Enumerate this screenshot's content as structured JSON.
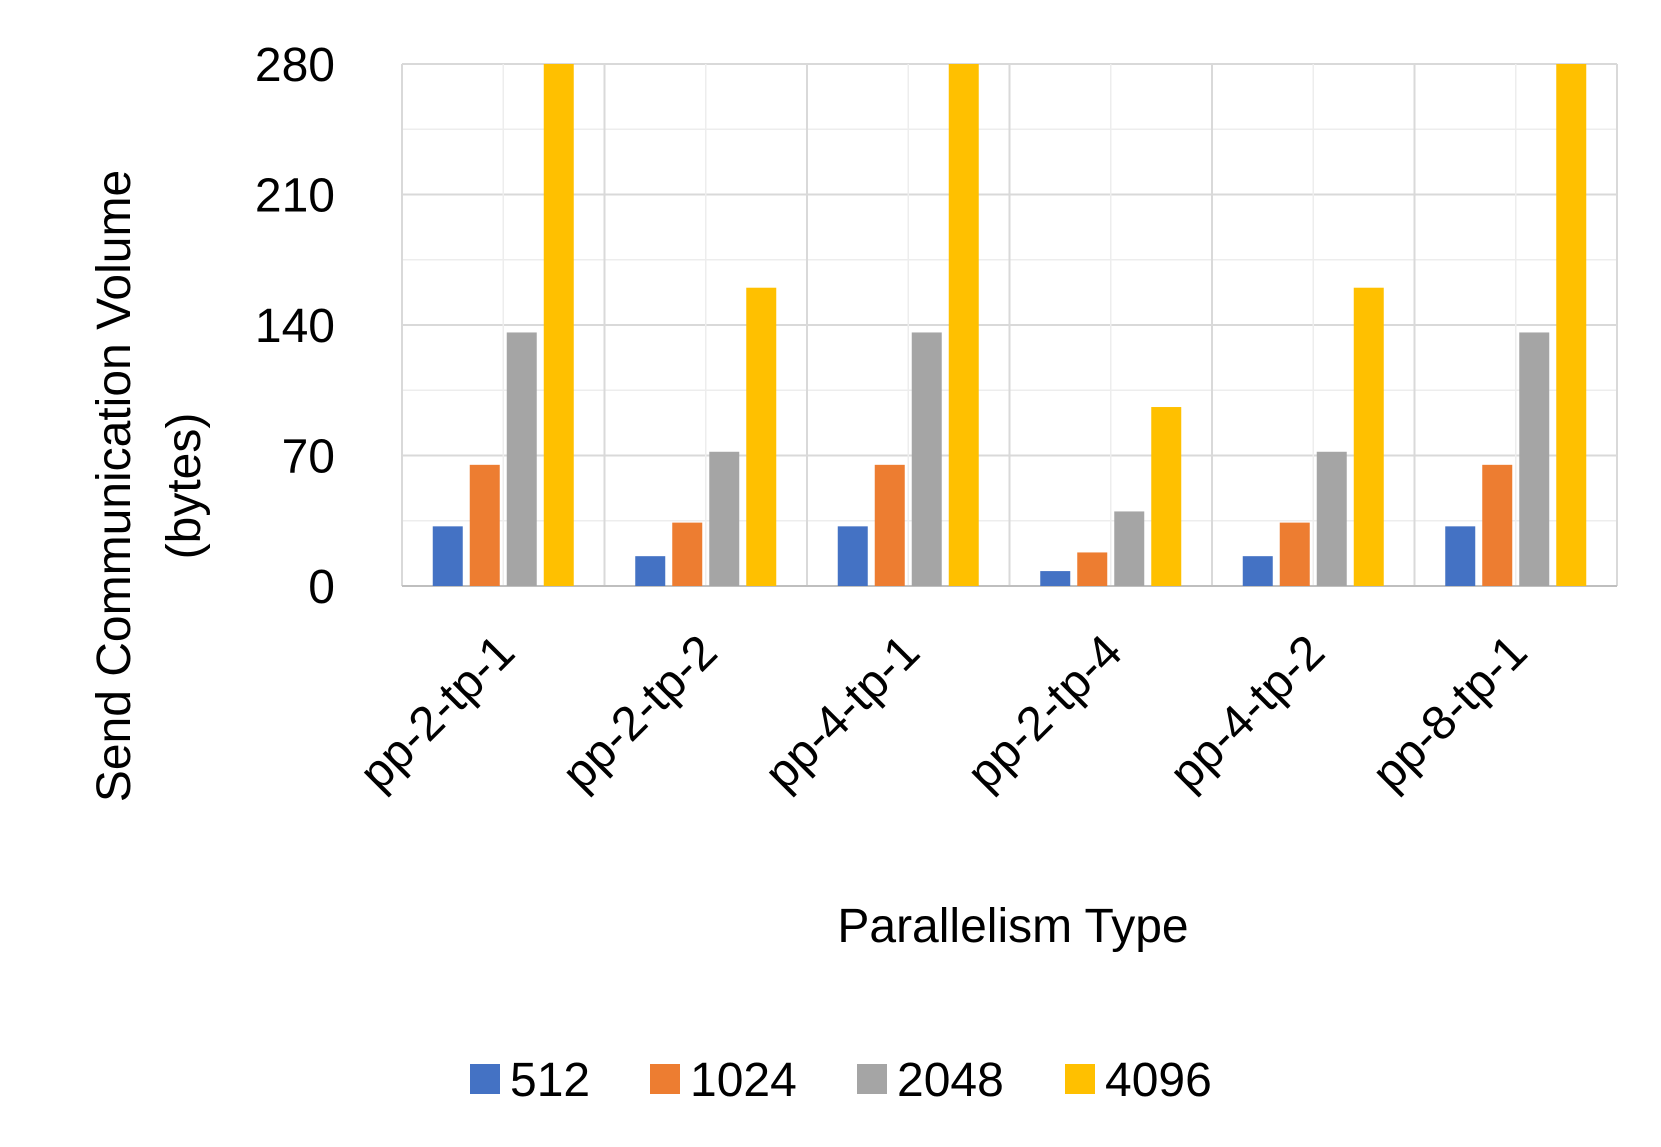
{
  "chart_data": {
    "type": "bar",
    "title": "",
    "xlabel": "Parallelism Type",
    "ylabel": "Send Communication Volume (bytes)",
    "ylabel_lines": [
      "Send Communication Volume",
      "(bytes)"
    ],
    "categories": [
      "pp-2-tp-1",
      "pp-2-tp-2",
      "pp-4-tp-1",
      "pp-2-tp-4",
      "pp-4-tp-2",
      "pp-8-tp-1"
    ],
    "series": [
      {
        "name": "512",
        "color": "#4472C4",
        "values": [
          32,
          16,
          32,
          8,
          16,
          32
        ]
      },
      {
        "name": "1024",
        "color": "#ED7D31",
        "values": [
          65,
          34,
          65,
          18,
          34,
          65
        ]
      },
      {
        "name": "2048",
        "color": "#A5A5A5",
        "values": [
          136,
          72,
          136,
          40,
          72,
          136
        ]
      },
      {
        "name": "4096",
        "color": "#FFC000",
        "values": [
          280,
          160,
          280,
          96,
          160,
          280
        ]
      }
    ],
    "ylim": [
      0,
      280
    ],
    "yticks": [
      0,
      70,
      140,
      210,
      280
    ],
    "grid": true,
    "legend_position": "bottom-center"
  }
}
